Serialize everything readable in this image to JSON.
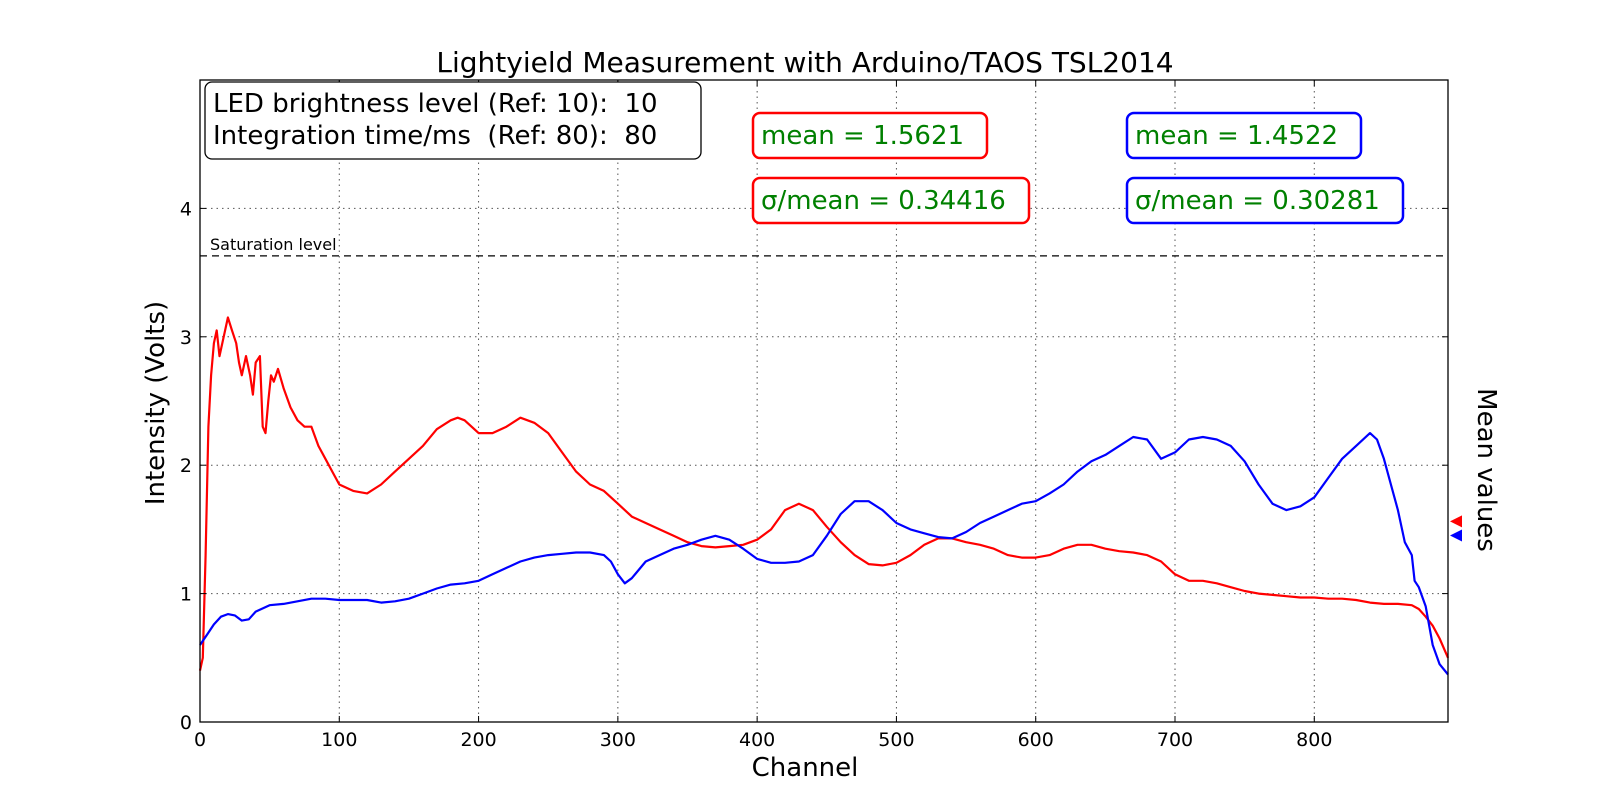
{
  "chart_data": {
    "type": "line",
    "title": "Lightyield Measurement with Arduino/TAOS TSL2014",
    "xlabel": "Channel",
    "ylabel": "Intensity (Volts)",
    "right_label": "Mean values",
    "xlim": [
      0,
      896
    ],
    "ylim": [
      0,
      5
    ],
    "xticks": [
      0,
      100,
      200,
      300,
      400,
      500,
      600,
      700,
      800
    ],
    "yticks": [
      0,
      1,
      2,
      3,
      4
    ],
    "grid": true,
    "info_box": {
      "line1": "LED brightness level (Ref: 10):  10",
      "line2": "Integration time/ms  (Ref: 80):  80"
    },
    "saturation": {
      "label": "Saturation level",
      "value": 3.63
    },
    "annotations": {
      "red_mean": "mean = 1.5621",
      "red_sigma": "σ/mean = 0.34416",
      "blue_mean": "mean = 1.4522",
      "blue_sigma": "σ/mean = 0.30281"
    },
    "colors": {
      "red": "#ff0000",
      "blue": "#0000ff",
      "green": "#008000"
    },
    "series": [
      {
        "color": "#ff0000",
        "mean": 1.5621,
        "points": [
          [
            0,
            0.4
          ],
          [
            2,
            0.5
          ],
          [
            4,
            1.3
          ],
          [
            6,
            2.3
          ],
          [
            8,
            2.7
          ],
          [
            10,
            2.95
          ],
          [
            12,
            3.05
          ],
          [
            14,
            2.85
          ],
          [
            17,
            3.0
          ],
          [
            20,
            3.15
          ],
          [
            23,
            3.05
          ],
          [
            26,
            2.95
          ],
          [
            28,
            2.8
          ],
          [
            30,
            2.7
          ],
          [
            33,
            2.85
          ],
          [
            36,
            2.7
          ],
          [
            38,
            2.55
          ],
          [
            40,
            2.8
          ],
          [
            43,
            2.85
          ],
          [
            45,
            2.3
          ],
          [
            47,
            2.25
          ],
          [
            49,
            2.5
          ],
          [
            51,
            2.7
          ],
          [
            53,
            2.65
          ],
          [
            56,
            2.75
          ],
          [
            60,
            2.6
          ],
          [
            65,
            2.45
          ],
          [
            70,
            2.35
          ],
          [
            75,
            2.3
          ],
          [
            80,
            2.3
          ],
          [
            85,
            2.15
          ],
          [
            90,
            2.05
          ],
          [
            95,
            1.95
          ],
          [
            100,
            1.85
          ],
          [
            110,
            1.8
          ],
          [
            120,
            1.78
          ],
          [
            130,
            1.85
          ],
          [
            140,
            1.95
          ],
          [
            150,
            2.05
          ],
          [
            160,
            2.15
          ],
          [
            170,
            2.28
          ],
          [
            180,
            2.35
          ],
          [
            185,
            2.37
          ],
          [
            190,
            2.35
          ],
          [
            200,
            2.25
          ],
          [
            210,
            2.25
          ],
          [
            220,
            2.3
          ],
          [
            230,
            2.37
          ],
          [
            240,
            2.33
          ],
          [
            250,
            2.25
          ],
          [
            260,
            2.1
          ],
          [
            270,
            1.95
          ],
          [
            280,
            1.85
          ],
          [
            290,
            1.8
          ],
          [
            300,
            1.7
          ],
          [
            310,
            1.6
          ],
          [
            320,
            1.55
          ],
          [
            330,
            1.5
          ],
          [
            340,
            1.45
          ],
          [
            350,
            1.4
          ],
          [
            360,
            1.37
          ],
          [
            370,
            1.36
          ],
          [
            380,
            1.37
          ],
          [
            390,
            1.38
          ],
          [
            400,
            1.42
          ],
          [
            410,
            1.5
          ],
          [
            420,
            1.65
          ],
          [
            430,
            1.7
          ],
          [
            440,
            1.65
          ],
          [
            450,
            1.52
          ],
          [
            460,
            1.4
          ],
          [
            470,
            1.3
          ],
          [
            480,
            1.23
          ],
          [
            490,
            1.22
          ],
          [
            500,
            1.24
          ],
          [
            510,
            1.3
          ],
          [
            520,
            1.38
          ],
          [
            530,
            1.43
          ],
          [
            540,
            1.43
          ],
          [
            550,
            1.4
          ],
          [
            560,
            1.38
          ],
          [
            570,
            1.35
          ],
          [
            580,
            1.3
          ],
          [
            590,
            1.28
          ],
          [
            600,
            1.28
          ],
          [
            610,
            1.3
          ],
          [
            620,
            1.35
          ],
          [
            630,
            1.38
          ],
          [
            640,
            1.38
          ],
          [
            650,
            1.35
          ],
          [
            660,
            1.33
          ],
          [
            670,
            1.32
          ],
          [
            680,
            1.3
          ],
          [
            690,
            1.25
          ],
          [
            700,
            1.15
          ],
          [
            710,
            1.1
          ],
          [
            720,
            1.1
          ],
          [
            730,
            1.08
          ],
          [
            740,
            1.05
          ],
          [
            750,
            1.02
          ],
          [
            760,
            1.0
          ],
          [
            770,
            0.99
          ],
          [
            780,
            0.98
          ],
          [
            790,
            0.97
          ],
          [
            800,
            0.97
          ],
          [
            810,
            0.96
          ],
          [
            820,
            0.96
          ],
          [
            830,
            0.95
          ],
          [
            840,
            0.93
          ],
          [
            850,
            0.92
          ],
          [
            860,
            0.92
          ],
          [
            870,
            0.91
          ],
          [
            875,
            0.88
          ],
          [
            880,
            0.82
          ],
          [
            885,
            0.75
          ],
          [
            890,
            0.65
          ],
          [
            896,
            0.5
          ]
        ]
      },
      {
        "color": "#0000ff",
        "mean": 1.4522,
        "points": [
          [
            0,
            0.6
          ],
          [
            5,
            0.68
          ],
          [
            10,
            0.76
          ],
          [
            15,
            0.82
          ],
          [
            20,
            0.84
          ],
          [
            25,
            0.83
          ],
          [
            30,
            0.79
          ],
          [
            35,
            0.8
          ],
          [
            40,
            0.86
          ],
          [
            50,
            0.91
          ],
          [
            60,
            0.92
          ],
          [
            70,
            0.94
          ],
          [
            80,
            0.96
          ],
          [
            90,
            0.96
          ],
          [
            100,
            0.95
          ],
          [
            110,
            0.95
          ],
          [
            120,
            0.95
          ],
          [
            130,
            0.93
          ],
          [
            140,
            0.94
          ],
          [
            150,
            0.96
          ],
          [
            160,
            1.0
          ],
          [
            170,
            1.04
          ],
          [
            180,
            1.07
          ],
          [
            190,
            1.08
          ],
          [
            200,
            1.1
          ],
          [
            210,
            1.15
          ],
          [
            220,
            1.2
          ],
          [
            230,
            1.25
          ],
          [
            240,
            1.28
          ],
          [
            250,
            1.3
          ],
          [
            260,
            1.31
          ],
          [
            270,
            1.32
          ],
          [
            280,
            1.32
          ],
          [
            290,
            1.3
          ],
          [
            295,
            1.25
          ],
          [
            300,
            1.15
          ],
          [
            305,
            1.08
          ],
          [
            310,
            1.12
          ],
          [
            320,
            1.25
          ],
          [
            330,
            1.3
          ],
          [
            340,
            1.35
          ],
          [
            350,
            1.38
          ],
          [
            360,
            1.42
          ],
          [
            370,
            1.45
          ],
          [
            380,
            1.42
          ],
          [
            390,
            1.35
          ],
          [
            400,
            1.27
          ],
          [
            410,
            1.24
          ],
          [
            420,
            1.24
          ],
          [
            430,
            1.25
          ],
          [
            440,
            1.3
          ],
          [
            450,
            1.45
          ],
          [
            460,
            1.62
          ],
          [
            470,
            1.72
          ],
          [
            480,
            1.72
          ],
          [
            490,
            1.65
          ],
          [
            500,
            1.55
          ],
          [
            510,
            1.5
          ],
          [
            520,
            1.47
          ],
          [
            530,
            1.44
          ],
          [
            540,
            1.43
          ],
          [
            550,
            1.48
          ],
          [
            560,
            1.55
          ],
          [
            570,
            1.6
          ],
          [
            580,
            1.65
          ],
          [
            590,
            1.7
          ],
          [
            600,
            1.72
          ],
          [
            610,
            1.78
          ],
          [
            620,
            1.85
          ],
          [
            630,
            1.95
          ],
          [
            640,
            2.03
          ],
          [
            650,
            2.08
          ],
          [
            660,
            2.15
          ],
          [
            670,
            2.22
          ],
          [
            680,
            2.2
          ],
          [
            690,
            2.05
          ],
          [
            700,
            2.1
          ],
          [
            710,
            2.2
          ],
          [
            720,
            2.22
          ],
          [
            730,
            2.2
          ],
          [
            740,
            2.15
          ],
          [
            750,
            2.03
          ],
          [
            760,
            1.85
          ],
          [
            770,
            1.7
          ],
          [
            780,
            1.65
          ],
          [
            790,
            1.68
          ],
          [
            800,
            1.75
          ],
          [
            810,
            1.9
          ],
          [
            820,
            2.05
          ],
          [
            830,
            2.15
          ],
          [
            840,
            2.25
          ],
          [
            845,
            2.2
          ],
          [
            850,
            2.05
          ],
          [
            855,
            1.85
          ],
          [
            860,
            1.65
          ],
          [
            865,
            1.4
          ],
          [
            870,
            1.3
          ],
          [
            872,
            1.1
          ],
          [
            875,
            1.05
          ],
          [
            880,
            0.9
          ],
          [
            885,
            0.6
          ],
          [
            890,
            0.45
          ],
          [
            896,
            0.37
          ]
        ]
      }
    ]
  }
}
